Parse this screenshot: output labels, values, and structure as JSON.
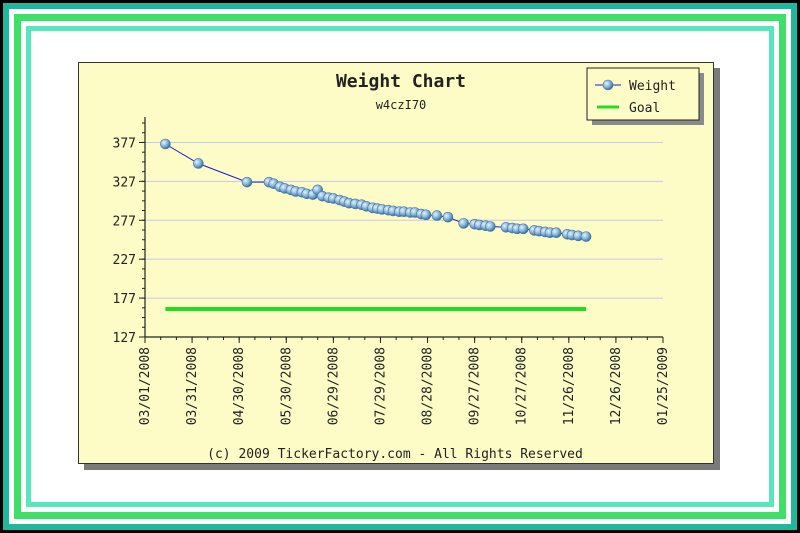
{
  "chart_data": {
    "type": "line",
    "title": "Weight Chart",
    "subtitle": "w4czI70",
    "footer": "(c) 2009 TickerFactory.com - All Rights Reserved",
    "ylim": [
      127,
      402
    ],
    "yticks": [
      377,
      327,
      277,
      227,
      177,
      127
    ],
    "x_tick_labels": [
      "03/01/2008",
      "03/31/2008",
      "04/30/2008",
      "05/30/2008",
      "06/29/2008",
      "07/29/2008",
      "08/28/2008",
      "09/27/2008",
      "10/27/2008",
      "11/26/2008",
      "12/26/2008",
      "01/25/2009"
    ],
    "legend_position": "top-right",
    "grid": "horizontal",
    "series": [
      {
        "name": "Weight",
        "color": "#1a1ad6",
        "marker_color": "#7fb1d9",
        "x_days": [
          13,
          34,
          65,
          79,
          82,
          86,
          89,
          93,
          96,
          100,
          103,
          107,
          110,
          113,
          117,
          120,
          124,
          127,
          130,
          134,
          138,
          141,
          145,
          148,
          151,
          155,
          158,
          162,
          165,
          169,
          172,
          176,
          179,
          186,
          193,
          203,
          210,
          213,
          217,
          220,
          230,
          234,
          237,
          241,
          248,
          251,
          255,
          258,
          262,
          269,
          272,
          276,
          281
        ],
        "values": [
          375,
          350,
          326,
          326,
          324,
          320,
          318,
          316,
          314,
          313,
          311,
          310,
          316,
          308,
          306,
          305,
          303,
          301,
          299,
          298,
          297,
          295,
          293,
          292,
          291,
          290,
          289,
          288,
          288,
          287,
          287,
          285,
          284,
          283,
          281,
          273,
          272,
          271,
          270,
          269,
          268,
          267,
          266,
          266,
          264,
          263,
          262,
          261,
          261,
          259,
          258,
          257,
          256
        ]
      },
      {
        "name": "Goal",
        "color": "#22dd22",
        "x_days": [
          13,
          281
        ],
        "values": [
          163,
          163
        ]
      }
    ]
  }
}
